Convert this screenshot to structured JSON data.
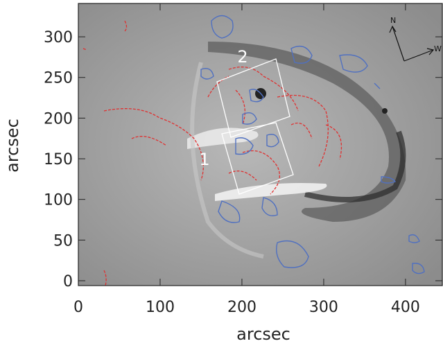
{
  "chart_data": {
    "type": "image",
    "x_label": "arcsec",
    "y_label": "arcsec",
    "xlim": [
      0,
      445
    ],
    "ylim": [
      -6,
      341
    ],
    "xticks": [
      0,
      100,
      200,
      300,
      400
    ],
    "yticks": [
      0,
      50,
      100,
      150,
      200,
      250,
      300
    ],
    "annotations": [
      "1",
      "2"
    ],
    "compass": [
      "N",
      "W"
    ]
  }
}
